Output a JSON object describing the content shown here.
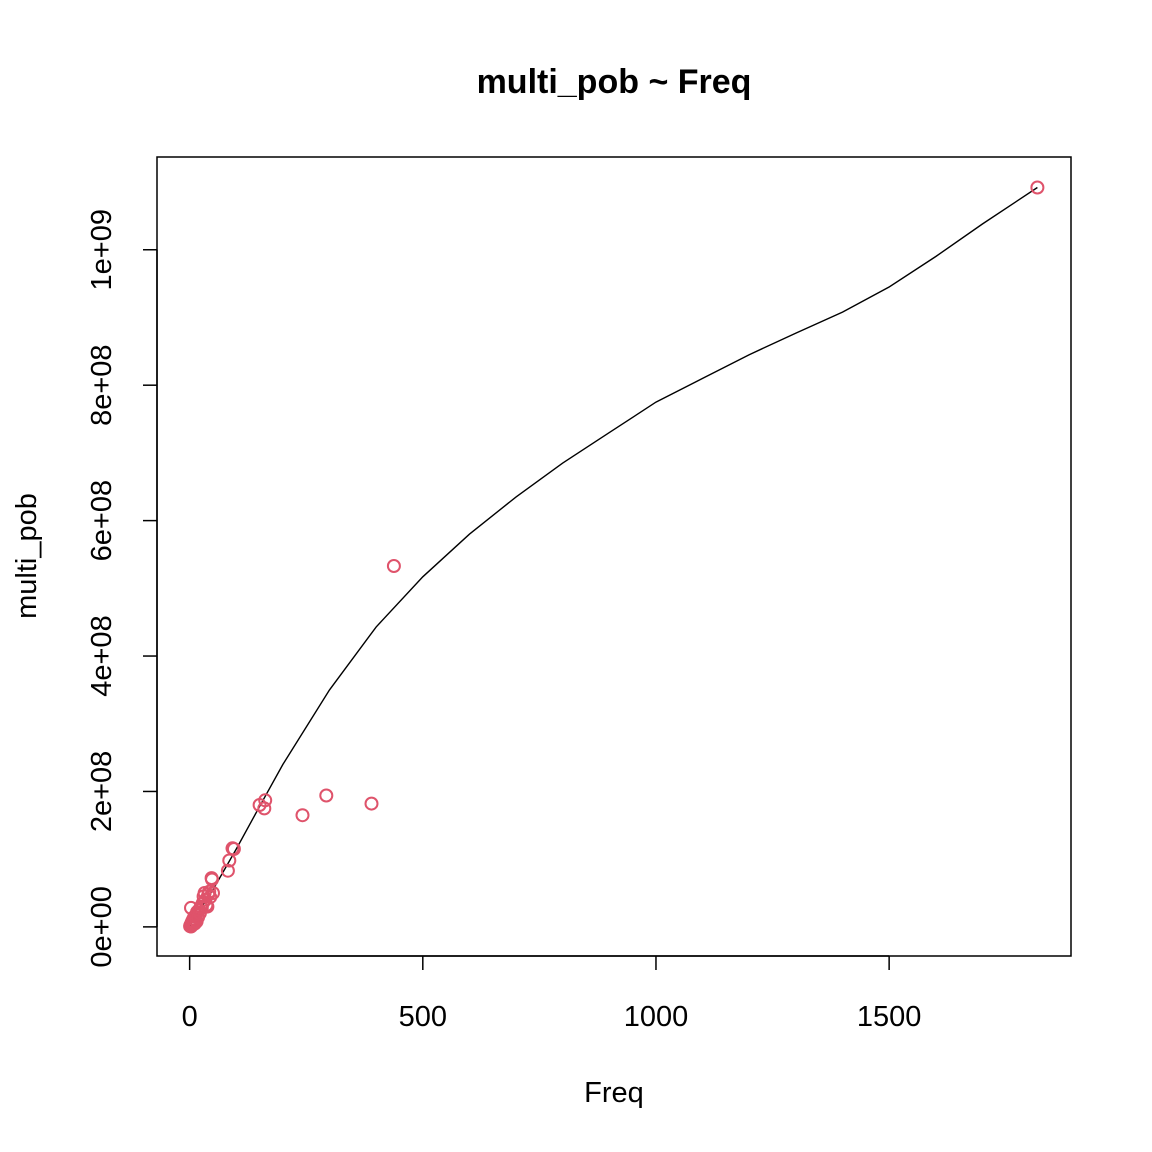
{
  "chart_data": {
    "type": "scatter",
    "title": "multi_pob ~ Freq",
    "xlabel": "Freq",
    "ylabel": "multi_pob",
    "xlim": [
      -70,
      1890
    ],
    "ylim": [
      -43000000,
      1137000000
    ],
    "x_ticks": [
      {
        "value": 0,
        "label": "0"
      },
      {
        "value": 500,
        "label": "500"
      },
      {
        "value": 1000,
        "label": "1000"
      },
      {
        "value": 1500,
        "label": "1500"
      }
    ],
    "y_ticks": [
      {
        "value": 0,
        "label": "0e+00"
      },
      {
        "value": 200000000,
        "label": "2e+08"
      },
      {
        "value": 400000000,
        "label": "4e+08"
      },
      {
        "value": 600000000,
        "label": "6e+08"
      },
      {
        "value": 800000000,
        "label": "8e+08"
      },
      {
        "value": 1000000000,
        "label": "1e+09"
      }
    ],
    "point_color": "#DF536B",
    "line_color": "#000000",
    "points": [
      [
        1,
        1000000
      ],
      [
        2,
        3000000
      ],
      [
        3,
        500000
      ],
      [
        4,
        6000000
      ],
      [
        5,
        2000000
      ],
      [
        6,
        9000000
      ],
      [
        7,
        4000000
      ],
      [
        8,
        12000000
      ],
      [
        9,
        7000000
      ],
      [
        10,
        15000000
      ],
      [
        3,
        28000000
      ],
      [
        11,
        5000000
      ],
      [
        12,
        10000000
      ],
      [
        14,
        18000000
      ],
      [
        15,
        8000000
      ],
      [
        16,
        22000000
      ],
      [
        18,
        14000000
      ],
      [
        20,
        25000000
      ],
      [
        22,
        20000000
      ],
      [
        24,
        30000000
      ],
      [
        26,
        28000000
      ],
      [
        28,
        35000000
      ],
      [
        30,
        45000000
      ],
      [
        32,
        50000000
      ],
      [
        34,
        40000000
      ],
      [
        36,
        32000000
      ],
      [
        38,
        30000000
      ],
      [
        40,
        48000000
      ],
      [
        42,
        52000000
      ],
      [
        44,
        44000000
      ],
      [
        47,
        72000000
      ],
      [
        48,
        70000000
      ],
      [
        50,
        50000000
      ],
      [
        82,
        83000000
      ],
      [
        85,
        98000000
      ],
      [
        92,
        116000000
      ],
      [
        95,
        115000000
      ],
      [
        150,
        180000000
      ],
      [
        160,
        175000000
      ],
      [
        162,
        187000000
      ],
      [
        242,
        165000000
      ],
      [
        293,
        194000000
      ],
      [
        390,
        182000000
      ],
      [
        438,
        533000000
      ],
      [
        1818,
        1092000000
      ]
    ],
    "fit_line": [
      [
        0,
        2000000
      ],
      [
        50,
        55000000
      ],
      [
        100,
        115000000
      ],
      [
        150,
        178000000
      ],
      [
        200,
        240000000
      ],
      [
        300,
        350000000
      ],
      [
        400,
        443000000
      ],
      [
        500,
        517000000
      ],
      [
        600,
        580000000
      ],
      [
        700,
        635000000
      ],
      [
        800,
        685000000
      ],
      [
        900,
        730000000
      ],
      [
        1000,
        775000000
      ],
      [
        1100,
        810000000
      ],
      [
        1200,
        845000000
      ],
      [
        1300,
        877000000
      ],
      [
        1400,
        908000000
      ],
      [
        1500,
        945000000
      ],
      [
        1600,
        990000000
      ],
      [
        1700,
        1038000000
      ],
      [
        1818,
        1092000000
      ]
    ]
  }
}
